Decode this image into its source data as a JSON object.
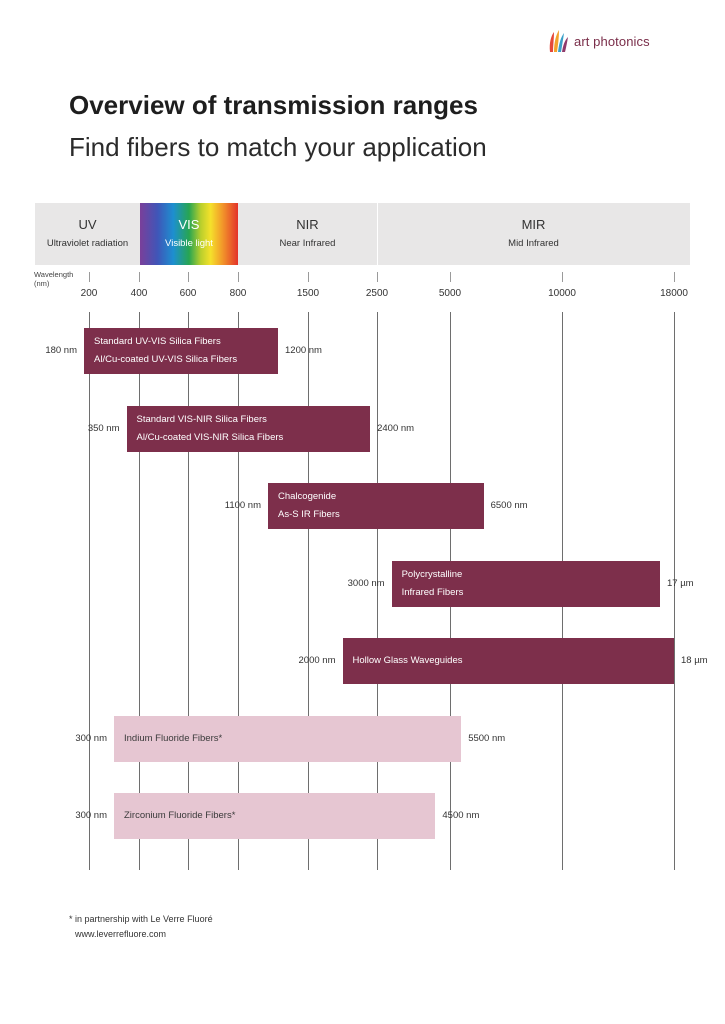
{
  "brand": {
    "name": "art photonics"
  },
  "page": {
    "title": "Overview of transmission ranges",
    "subtitle": "Find fibers to match your application"
  },
  "spectrum": [
    {
      "name": "UV",
      "desc": "Ultraviolet radiation"
    },
    {
      "name": "VIS",
      "desc": "Visible light"
    },
    {
      "name": "NIR",
      "desc": "Near Infrared"
    },
    {
      "name": "MIR",
      "desc": "Mid Infrared"
    }
  ],
  "axis": {
    "label": "Wavelength (nm)",
    "ticks": [
      "200",
      "400",
      "600",
      "800",
      "1500",
      "2500",
      "5000",
      "10000",
      "18000"
    ]
  },
  "chart_data": {
    "type": "bar",
    "orientation": "horizontal-range",
    "x_scale": "piecewise",
    "x_ticks_nm": [
      200,
      400,
      600,
      800,
      1500,
      2500,
      5000,
      10000,
      18000
    ],
    "xlabel": "Wavelength (nm)",
    "grid": true,
    "series": [
      {
        "lines": [
          "Standard UV-VIS Silica Fibers",
          "Al/Cu-coated UV-VIS Silica Fibers"
        ],
        "min_nm": 180,
        "max_nm": 1200,
        "min_label": "180 nm",
        "max_label": "1200 nm",
        "style": "dark"
      },
      {
        "lines": [
          "Standard VIS-NIR Silica Fibers",
          "Al/Cu-coated VIS-NIR Silica Fibers"
        ],
        "min_nm": 350,
        "max_nm": 2400,
        "min_label": "350 nm",
        "max_label": "2400 nm",
        "style": "dark"
      },
      {
        "lines": [
          "Chalcogenide",
          "As-S IR Fibers"
        ],
        "min_nm": 1100,
        "max_nm": 6500,
        "min_label": "1100 nm",
        "max_label": "6500 nm",
        "style": "dark"
      },
      {
        "lines": [
          "Polycrystalline",
          "Infrared Fibers"
        ],
        "min_nm": 3000,
        "max_nm": 17000,
        "min_label": "3000 nm",
        "max_label": "17 µm",
        "style": "dark"
      },
      {
        "lines": [
          "Hollow Glass Waveguides"
        ],
        "min_nm": 2000,
        "max_nm": 18000,
        "min_label": "2000 nm",
        "max_label": "18 µm",
        "style": "dark"
      },
      {
        "lines": [
          "Indium Fluoride Fibers*"
        ],
        "min_nm": 300,
        "max_nm": 5500,
        "min_label": "300 nm",
        "max_label": "5500 nm",
        "style": "light"
      },
      {
        "lines": [
          "Zirconium Fluoride Fibers*"
        ],
        "min_nm": 300,
        "max_nm": 4500,
        "min_label": "300 nm",
        "max_label": "4500 nm",
        "style": "light"
      }
    ]
  },
  "footnote": {
    "line1": "* in partnership with Le Verre Fluoré",
    "line2": "www.leverrefluore.com"
  },
  "colors": {
    "bar_dark": "#7d2f4b",
    "bar_light": "#e6c6d2",
    "band_gray": "#e8e7e7",
    "brand": "#7a2e4a"
  }
}
